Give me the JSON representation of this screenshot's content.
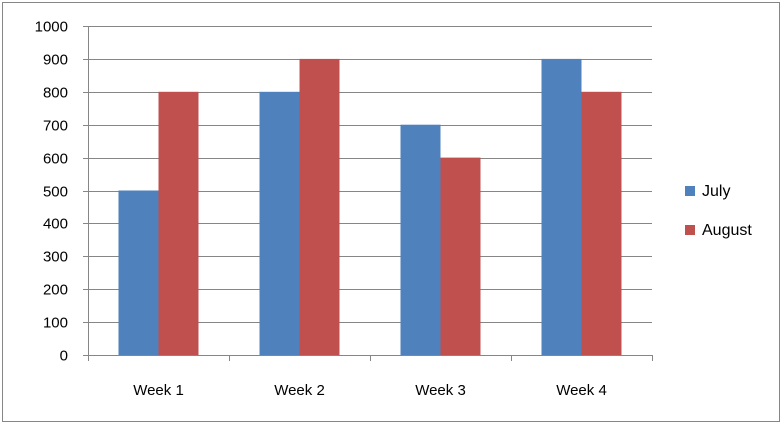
{
  "chart_data": {
    "type": "bar",
    "title": "",
    "xlabel": "",
    "ylabel": "",
    "categories": [
      "Week 1",
      "Week 2",
      "Week 3",
      "Week 4"
    ],
    "series": [
      {
        "name": "July",
        "values": [
          500,
          800,
          700,
          900
        ],
        "color": "#4f81bd"
      },
      {
        "name": "August",
        "values": [
          800,
          900,
          600,
          800
        ],
        "color": "#c0504d"
      }
    ],
    "ylim": [
      0,
      1000
    ],
    "yticks": [
      0,
      100,
      200,
      300,
      400,
      500,
      600,
      700,
      800,
      900,
      1000
    ],
    "grid": true,
    "legend_position": "right"
  }
}
